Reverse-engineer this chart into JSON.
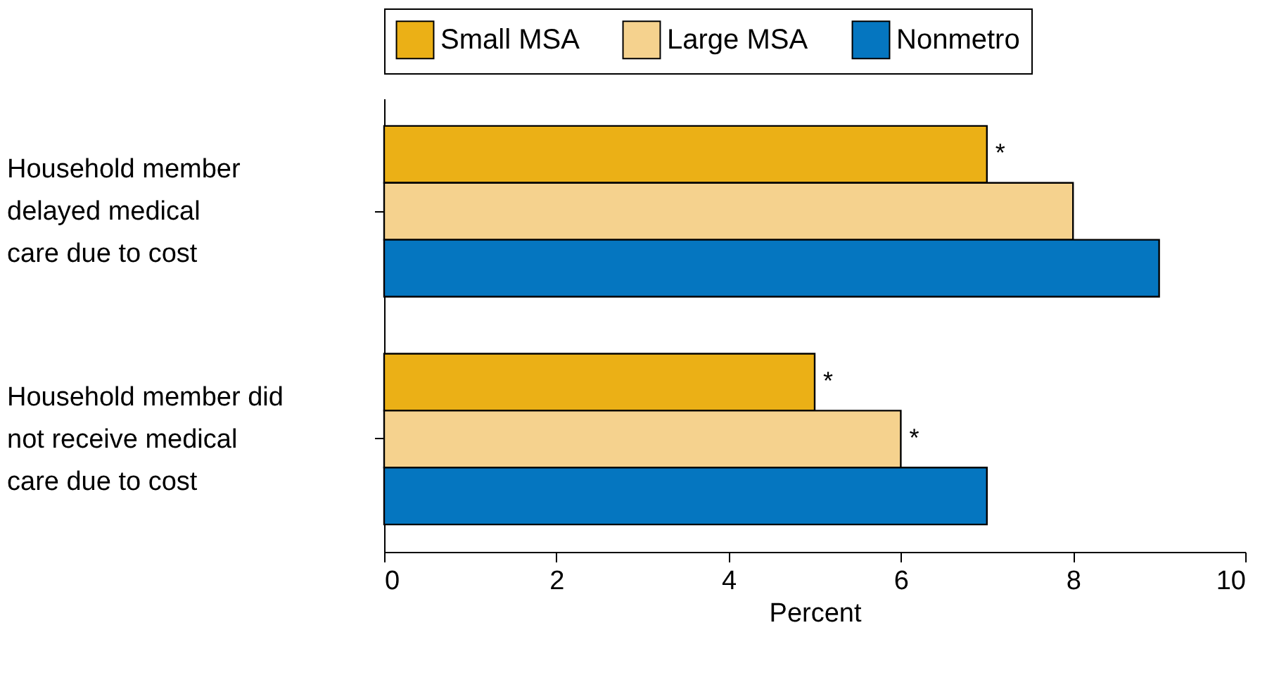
{
  "chart_data": {
    "type": "bar",
    "orientation": "horizontal",
    "categories": [
      "Household member delayed medical care due to cost",
      "Household member did not receive medical care due to cost"
    ],
    "series": [
      {
        "name": "Small MSA",
        "color": "#ebb016",
        "values": [
          7,
          5
        ],
        "value_labels": [
          "*",
          "*"
        ]
      },
      {
        "name": "Large MSA",
        "color": "#f5d28e",
        "values": [
          8,
          6
        ],
        "value_labels": [
          null,
          "*"
        ]
      },
      {
        "name": "Nonmetro",
        "color": "#0576c0",
        "values": [
          9,
          7
        ],
        "value_labels": [
          null,
          null
        ]
      }
    ],
    "xlabel": "Percent",
    "xlim": [
      0,
      10
    ],
    "xticks": [
      0,
      2,
      4,
      6,
      8,
      10
    ],
    "grid": false,
    "legend": "top"
  }
}
